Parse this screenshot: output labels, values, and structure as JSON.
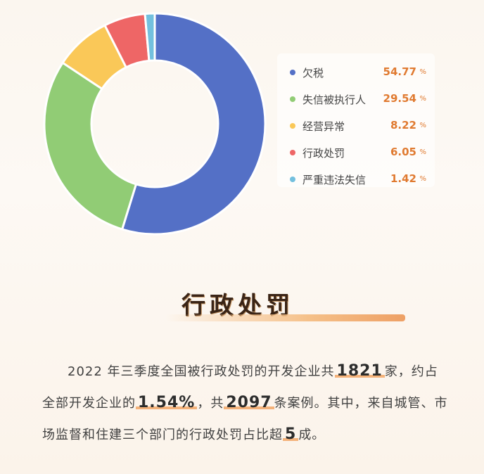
{
  "chart_data": {
    "type": "pie",
    "donut": true,
    "categories": [
      "欠税",
      "失信被执行人",
      "经营异常",
      "行政处罚",
      "严重违法失信"
    ],
    "values": [
      54.77,
      29.54,
      8.22,
      6.05,
      1.42
    ],
    "display_values": [
      "54.77",
      "29.54",
      "8.22",
      "6.05",
      "1.42"
    ],
    "unit": "%",
    "colors": [
      "#5470c6",
      "#91cc75",
      "#fac858",
      "#ee6666",
      "#73c0de"
    ],
    "legend_position": "right"
  },
  "section": {
    "title": "行政处罚"
  },
  "paragraph": {
    "l1_a": "2022 年三季度全国被行政处罚的开发企业共",
    "l1_b": "1821",
    "l1_c": "家，约占",
    "l2_a": "全部开发企业的",
    "l2_b": "1.54%",
    "l2_c": "，共",
    "l2_d": "2097",
    "l2_e": "条案例。其中，来自城管、市",
    "l3_a": "场监督和住建三个部门的行政处罚占比超",
    "l3_b": "5",
    "l3_c": "成。"
  }
}
